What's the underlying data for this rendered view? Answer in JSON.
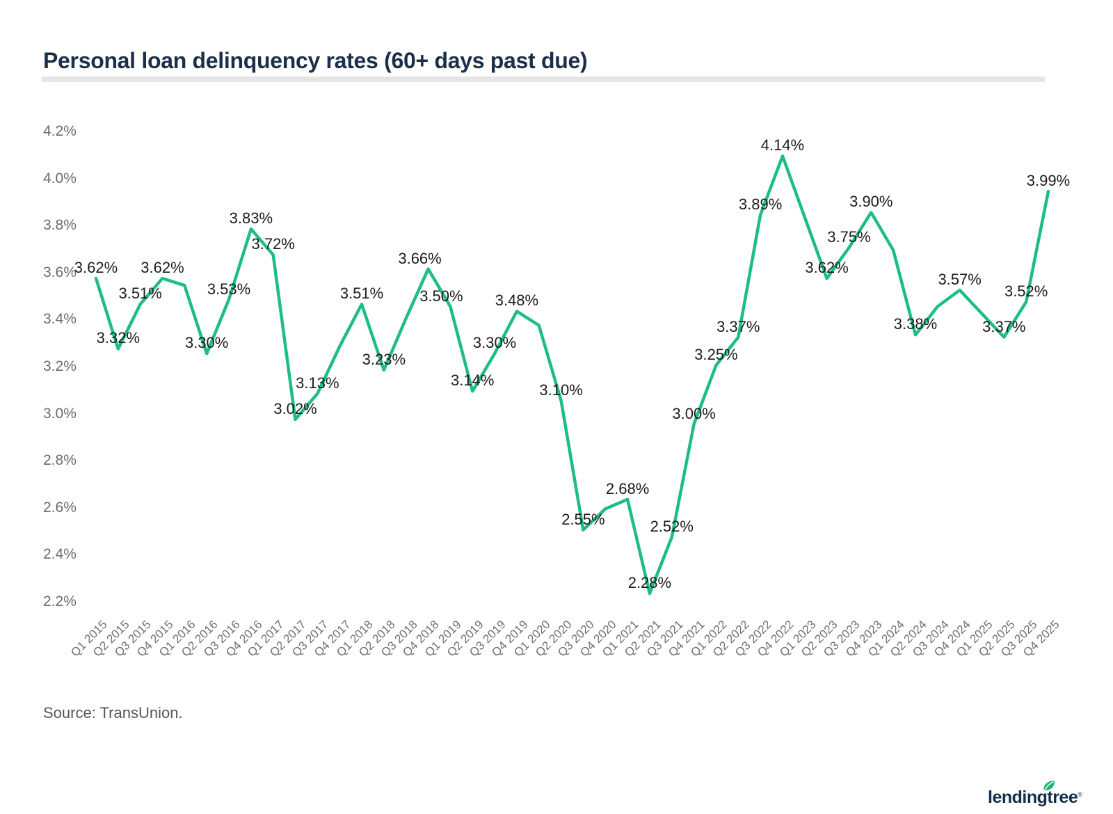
{
  "title": "Personal loan delinquency rates (60+ days past due)",
  "source": "Source: TransUnion.",
  "logo": {
    "text": "lendingtree",
    "reg": "®"
  },
  "colors": {
    "line": "#1EBE82",
    "title": "#1A2F49",
    "data_label": "#1B1B1B",
    "axis_label": "#6B6B6B",
    "x_label": "#707070",
    "divider": "#E5E5E5",
    "source": "#575757",
    "logo_navy": "#142F47",
    "leaf_green": "#21B573",
    "background": "#FFFFFF"
  },
  "chart_data": {
    "type": "line",
    "title": "Personal loan delinquency rates (60+ days past due)",
    "xlabel": "",
    "ylabel": "",
    "ylim": [
      2.2,
      4.2
    ],
    "grid": false,
    "legend_position": "none",
    "yticks": [
      "4.2%",
      "4.0%",
      "3.8%",
      "3.6%",
      "3.4%",
      "3.2%",
      "3.0%",
      "2.8%",
      "2.6%",
      "2.4%",
      "2.2%"
    ],
    "x": [
      "Q1 2015",
      "Q2 2015",
      "Q3 2015",
      "Q4 2015",
      "Q1 2016",
      "Q2 2016",
      "Q3 2016",
      "Q4 2016",
      "Q1 2017",
      "Q2 2017",
      "Q3 2017",
      "Q4 2017",
      "Q1 2018",
      "Q2 2018",
      "Q3 2018",
      "Q4 2018",
      "Q1 2019",
      "Q2 2019",
      "Q3 2019",
      "Q4 2019",
      "Q1 2020",
      "Q2 2020",
      "Q3 2020",
      "Q4 2020",
      "Q1 2021",
      "Q2 2021",
      "Q3 2021",
      "Q4 2021",
      "Q1 2022",
      "Q2 2022",
      "Q3 2022",
      "Q4 2022",
      "Q1 2023",
      "Q2 2023",
      "Q3 2023",
      "Q4 2023",
      "Q1 2024",
      "Q2 2024",
      "Q3 2024",
      "Q4 2024",
      "Q1 2025",
      "Q2 2025",
      "Q3 2025",
      "Q4 2025"
    ],
    "values": [
      3.62,
      3.32,
      3.51,
      3.62,
      3.59,
      3.3,
      3.53,
      3.83,
      3.72,
      3.02,
      3.13,
      3.33,
      3.51,
      3.23,
      3.45,
      3.66,
      3.5,
      3.14,
      3.3,
      3.48,
      3.42,
      3.1,
      2.55,
      2.64,
      2.68,
      2.28,
      2.52,
      3.0,
      3.25,
      3.37,
      3.89,
      4.14,
      3.88,
      3.62,
      3.75,
      3.9,
      3.74,
      3.38,
      3.5,
      3.57,
      3.47,
      3.37,
      3.52,
      3.99
    ],
    "point_labels": [
      "3.62%",
      "3.32%",
      "3.51%",
      "3.62%",
      null,
      "3.30%",
      "3.53%",
      "3.83%",
      "3.72%",
      "3.02%",
      "3.13%",
      null,
      "3.51%",
      "3.23%",
      null,
      "3.66%",
      "3.50%",
      "3.14%",
      "3.30%",
      "3.48%",
      null,
      "3.10%",
      "2.55%",
      null,
      "2.68%",
      "2.28%",
      "2.52%",
      "3.00%",
      "3.25%",
      "3.37%",
      "3.89%",
      "4.14%",
      null,
      "3.62%",
      "3.75%",
      "3.90%",
      null,
      "3.38%",
      null,
      "3.57%",
      null,
      "3.37%",
      "3.52%",
      "3.99%"
    ]
  }
}
